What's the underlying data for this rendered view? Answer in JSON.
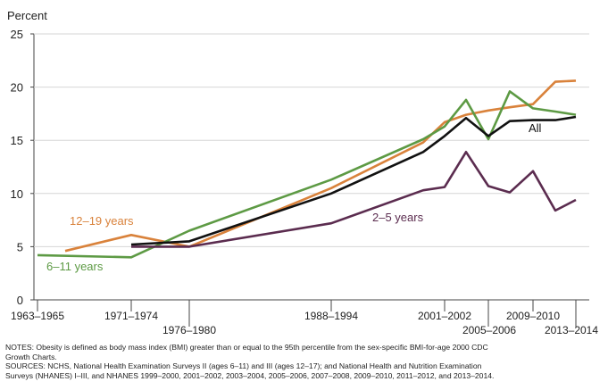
{
  "chart_data": {
    "type": "line",
    "ylabel": "Percent",
    "ylim": [
      0,
      25
    ],
    "yticks": [
      0,
      5,
      10,
      15,
      20,
      25
    ],
    "x_ticks": [
      "1963–1965",
      "1971–1974",
      "1976–1980",
      "1988–1994",
      "2001–2002",
      "2005–2006",
      "2009–2010",
      "2013–2014"
    ],
    "series": [
      {
        "name": "12–19 years",
        "color": "#d9823b",
        "points": [
          {
            "x": "1966–1970",
            "y": 4.6
          },
          {
            "x": "1971–1974",
            "y": 6.1
          },
          {
            "x": "1976–1980",
            "y": 5.0
          },
          {
            "x": "1988–1994",
            "y": 10.5
          },
          {
            "x": "1999–2000",
            "y": 14.8
          },
          {
            "x": "2001–2002",
            "y": 16.7
          },
          {
            "x": "2003–2004",
            "y": 17.4
          },
          {
            "x": "2005–2006",
            "y": 17.8
          },
          {
            "x": "2007–2008",
            "y": 18.1
          },
          {
            "x": "2009–2010",
            "y": 18.4
          },
          {
            "x": "2011–2012",
            "y": 20.5
          },
          {
            "x": "2013–2014",
            "y": 20.6
          }
        ]
      },
      {
        "name": "6–11 years",
        "color": "#5d9a44",
        "points": [
          {
            "x": "1963–1965",
            "y": 4.2
          },
          {
            "x": "1971–1974",
            "y": 4.0
          },
          {
            "x": "1976–1980",
            "y": 6.5
          },
          {
            "x": "1988–1994",
            "y": 11.3
          },
          {
            "x": "1999–2000",
            "y": 15.1
          },
          {
            "x": "2001–2002",
            "y": 16.3
          },
          {
            "x": "2003–2004",
            "y": 18.8
          },
          {
            "x": "2005–2006",
            "y": 15.1
          },
          {
            "x": "2007–2008",
            "y": 19.6
          },
          {
            "x": "2009–2010",
            "y": 18.0
          },
          {
            "x": "2011–2012",
            "y": 17.7
          },
          {
            "x": "2013–2014",
            "y": 17.4
          }
        ]
      },
      {
        "name": "All",
        "color": "#111111",
        "points": [
          {
            "x": "1971–1974",
            "y": 5.2
          },
          {
            "x": "1976–1980",
            "y": 5.5
          },
          {
            "x": "1988–1994",
            "y": 10.0
          },
          {
            "x": "1999–2000",
            "y": 13.9
          },
          {
            "x": "2001–2002",
            "y": 15.4
          },
          {
            "x": "2003–2004",
            "y": 17.1
          },
          {
            "x": "2005–2006",
            "y": 15.4
          },
          {
            "x": "2007–2008",
            "y": 16.8
          },
          {
            "x": "2009–2010",
            "y": 16.9
          },
          {
            "x": "2011–2012",
            "y": 16.9
          },
          {
            "x": "2013–2014",
            "y": 17.2
          }
        ]
      },
      {
        "name": "2–5 years",
        "color": "#5b2c4f",
        "points": [
          {
            "x": "1971–1974",
            "y": 5.0
          },
          {
            "x": "1976–1980",
            "y": 5.0
          },
          {
            "x": "1988–1994",
            "y": 7.2
          },
          {
            "x": "1999–2000",
            "y": 10.3
          },
          {
            "x": "2001–2002",
            "y": 10.6
          },
          {
            "x": "2003–2004",
            "y": 13.9
          },
          {
            "x": "2005–2006",
            "y": 10.7
          },
          {
            "x": "2007–2008",
            "y": 10.1
          },
          {
            "x": "2009–2010",
            "y": 12.1
          },
          {
            "x": "2011–2012",
            "y": 8.4
          },
          {
            "x": "2013–2014",
            "y": 9.4
          }
        ]
      }
    ],
    "annotations": [
      "12–19 years",
      "6–11 years",
      "All",
      "2–5 years"
    ]
  },
  "notes": {
    "notes_line1": "NOTES: Obesity is defined as body mass index (BMI) greater than or equal to the 95th percentile from the sex-specific BMI-for-age 2000 CDC",
    "notes_line2": "Growth Charts.",
    "sources_line1": "SOURCES: NCHS, National Health Examination Surveys II (ages 6–11) and III (ages 12–17); and National Health and Nutrition Examination",
    "sources_line2": "Surveys (NHANES) I–III, and  NHANES 1999–2000, 2001–2002, 2003–2004, 2005–2006, 2007–2008, 2009–2010, 2011–2012, and 2013–2014."
  }
}
